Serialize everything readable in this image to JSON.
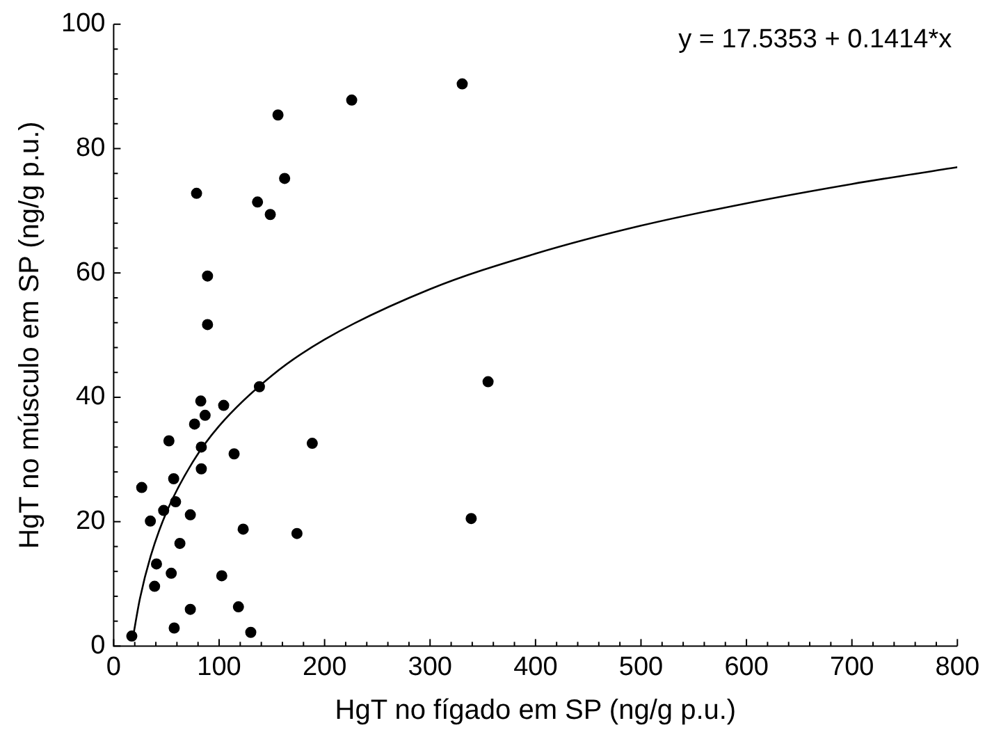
{
  "chart_data": {
    "type": "scatter",
    "xlabel": "HgT no fígado em SP (ng/g p.u.)",
    "ylabel": "HgT no músculo em SP (ng/g p.u.)",
    "annotations": [
      "y = 17.5353 + 0.1414*x"
    ],
    "xlim": [
      0,
      800
    ],
    "ylim": [
      0,
      100
    ],
    "xticks": [
      0,
      {
        "value": 20,
        "label": null
      },
      {
        "value": 40,
        "label": null
      },
      {
        "value": 60,
        "label": null
      },
      {
        "value": 80,
        "label": null
      },
      100,
      {
        "value": 120,
        "label": null
      },
      {
        "value": 140,
        "label": null
      },
      {
        "value": 160,
        "label": null
      },
      {
        "value": 180,
        "label": null
      },
      200,
      {
        "value": 220,
        "label": null
      },
      {
        "value": 240,
        "label": null
      },
      {
        "value": 260,
        "label": null
      },
      {
        "value": 280,
        "label": null
      },
      300,
      {
        "value": 320,
        "label": null
      },
      {
        "value": 340,
        "label": null
      },
      {
        "value": 360,
        "label": null
      },
      {
        "value": 380,
        "label": null
      },
      400,
      {
        "value": 420,
        "label": null
      },
      {
        "value": 440,
        "label": null
      },
      {
        "value": 460,
        "label": null
      },
      {
        "value": 480,
        "label": null
      },
      500,
      {
        "value": 520,
        "label": null
      },
      {
        "value": 540,
        "label": null
      },
      {
        "value": 560,
        "label": null
      },
      {
        "value": 580,
        "label": null
      },
      600,
      {
        "value": 620,
        "label": null
      },
      {
        "value": 640,
        "label": null
      },
      {
        "value": 660,
        "label": null
      },
      {
        "value": 680,
        "label": null
      },
      700,
      {
        "value": 720,
        "label": null
      },
      {
        "value": 740,
        "label": null
      },
      {
        "value": 760,
        "label": null
      },
      {
        "value": 780,
        "label": null
      },
      800
    ],
    "yticks": [
      0,
      {
        "value": 4,
        "label": null
      },
      {
        "value": 8,
        "label": null
      },
      {
        "value": 12,
        "label": null
      },
      {
        "value": 16,
        "label": null
      },
      20,
      {
        "value": 24,
        "label": null
      },
      {
        "value": 28,
        "label": null
      },
      {
        "value": 32,
        "label": null
      },
      {
        "value": 36,
        "label": null
      },
      40,
      {
        "value": 44,
        "label": null
      },
      {
        "value": 48,
        "label": null
      },
      {
        "value": 52,
        "label": null
      },
      {
        "value": 56,
        "label": null
      },
      60,
      {
        "value": 64,
        "label": null
      },
      {
        "value": 68,
        "label": null
      },
      {
        "value": 72,
        "label": null
      },
      {
        "value": 76,
        "label": null
      },
      80,
      {
        "value": 84,
        "label": null
      },
      {
        "value": 88,
        "label": null
      },
      {
        "value": 92,
        "label": null
      },
      {
        "value": 96,
        "label": null
      },
      100
    ],
    "series": [
      {
        "marker": "circle",
        "color": "#000000",
        "x": [
          17.2,
          26.6,
          34.8,
          40.6,
          40.2,
          38.8,
          47.4,
          54.6,
          57.4,
          56.9,
          58.7,
          62.8,
          52.4,
          72.7,
          72.7,
          76.7,
          82.6,
          86.7,
          83.1,
          83.1,
          104.3,
          102.5,
          114.2,
          118.3,
          122.8,
          130.0,
          138.2,
          173.8,
          188.3,
          78.6,
          89.0,
          89.0,
          136.4,
          148.5,
          155.8,
          162.1,
          225.7,
          330.5,
          355,
          339
        ],
        "values": [
          1.6,
          25.5,
          20.1,
          13.2,
          null,
          9.6,
          21.8,
          11.7,
          2.9,
          26.9,
          23.2,
          16.5,
          33.0,
          5.9,
          21.1,
          35.7,
          39.4,
          37.1,
          32.0,
          28.5,
          38.7,
          11.3,
          30.9,
          6.3,
          18.8,
          2.2,
          41.7,
          18.1,
          32.6,
          72.8,
          59.5,
          51.7,
          71.4,
          69.4,
          85.4,
          75.2,
          87.8,
          90.4,
          42.5,
          20.5
        ]
      },
      {
        "type": "line",
        "marker": "none",
        "color": "#000000",
        "x": [
          18,
          25,
          35,
          50,
          75,
          100,
          150,
          200,
          300,
          400,
          500,
          600,
          700,
          800
        ],
        "values": [
          1.1,
          7.7,
          14.4,
          21.5,
          29.6,
          35.4,
          43.5,
          49.3,
          57.4,
          63.1,
          67.6,
          71.2,
          74.3,
          77.0
        ]
      }
    ]
  }
}
